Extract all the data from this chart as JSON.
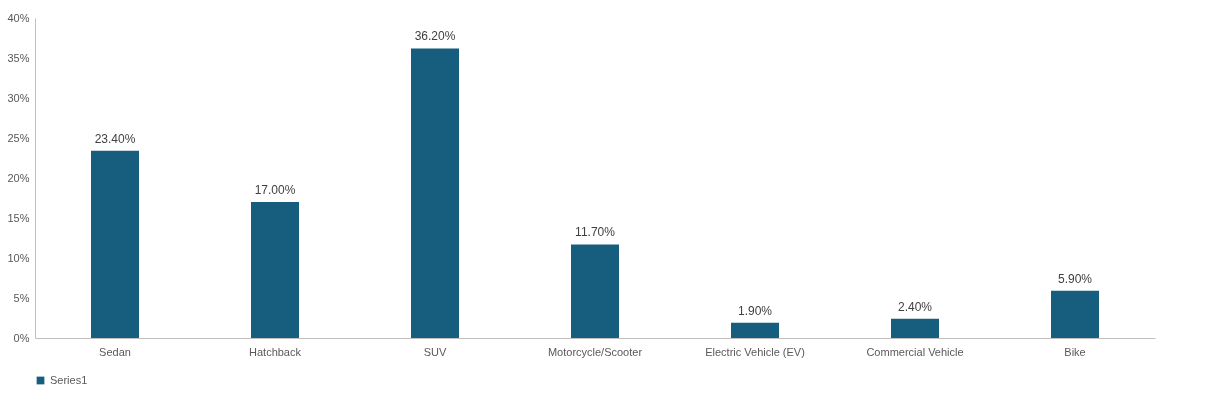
{
  "chart_data": {
    "type": "bar",
    "categories": [
      "Sedan",
      "Hatchback",
      "SUV",
      "Motorcycle/Scooter",
      "Electric Vehicle (EV)",
      "Commercial Vehicle",
      "Bike"
    ],
    "series": [
      {
        "name": "Series1",
        "color": "#175e7e",
        "values": [
          23.4,
          17.0,
          36.2,
          11.7,
          1.9,
          2.4,
          5.9
        ],
        "value_labels": [
          "23.40%",
          "17.00%",
          "36.20%",
          "11.70%",
          "1.90%",
          "2.40%",
          "5.90%"
        ]
      }
    ],
    "ylim": [
      0,
      40
    ],
    "yticks": [
      {
        "value": 0,
        "label": "0%"
      },
      {
        "value": 5,
        "label": "5%"
      },
      {
        "value": 10,
        "label": "10%"
      },
      {
        "value": 15,
        "label": "15%"
      },
      {
        "value": 20,
        "label": "20%"
      },
      {
        "value": 25,
        "label": "25%"
      },
      {
        "value": 30,
        "label": "30%"
      },
      {
        "value": 35,
        "label": "35%"
      },
      {
        "value": 40,
        "label": "40%"
      }
    ],
    "grid": false,
    "legend": "bottom"
  }
}
